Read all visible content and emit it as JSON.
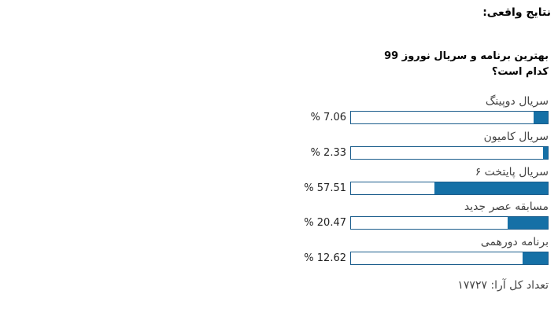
{
  "chart_data": {
    "type": "bar",
    "title": "نتایج واقعی:",
    "subtitle": "بهترین برنامه و سریال نوروز 99 کدام است؟",
    "categories": [
      "سریال دوپینگ",
      "سریال کامیون",
      "سریال پایتخت ۶",
      "مسابقه عصر جدید",
      "برنامه دورهمی"
    ],
    "values": [
      7.06,
      2.33,
      57.51,
      20.47,
      12.62
    ],
    "value_labels": [
      "% 7.06",
      "% 2.33",
      "% 57.51",
      "% 20.47",
      "% 12.62"
    ],
    "color": "#1570a6",
    "xlim": [
      0,
      100
    ],
    "annotation": "تعداد کل آرا: ۱۷۷۲۷"
  }
}
